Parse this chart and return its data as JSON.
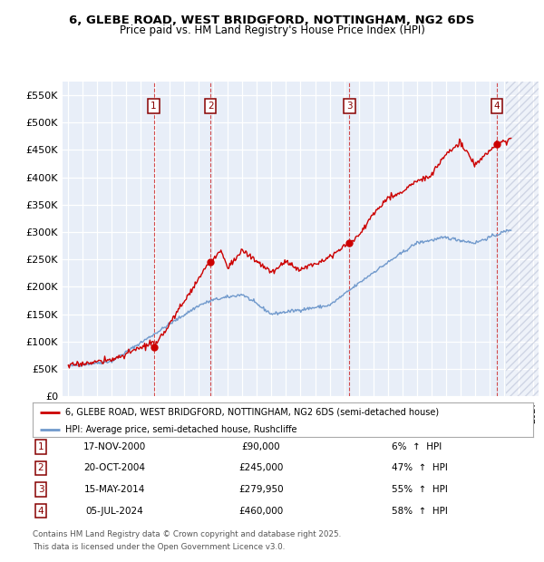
{
  "title": "6, GLEBE ROAD, WEST BRIDGFORD, NOTTINGHAM, NG2 6DS",
  "subtitle": "Price paid vs. HM Land Registry's House Price Index (HPI)",
  "ylabel_ticks": [
    0,
    50000,
    100000,
    150000,
    200000,
    250000,
    300000,
    350000,
    400000,
    450000,
    500000,
    550000
  ],
  "ylabel_labels": [
    "£0",
    "£50K",
    "£100K",
    "£150K",
    "£200K",
    "£250K",
    "£300K",
    "£350K",
    "£400K",
    "£450K",
    "£500K",
    "£550K"
  ],
  "xmin": 1994.6,
  "xmax": 2027.4,
  "ymin": 0,
  "ymax": 575000,
  "red_line_label": "6, GLEBE ROAD, WEST BRIDGFORD, NOTTINGHAM, NG2 6DS (semi-detached house)",
  "blue_line_label": "HPI: Average price, semi-detached house, Rushcliffe",
  "sales": [
    {
      "num": 1,
      "date": "17-NOV-2000",
      "year": 2000.88,
      "price": 90000,
      "hpi_pct": "6%",
      "direction": "↑"
    },
    {
      "num": 2,
      "date": "20-OCT-2004",
      "year": 2004.8,
      "price": 245000,
      "hpi_pct": "47%",
      "direction": "↑"
    },
    {
      "num": 3,
      "date": "15-MAY-2014",
      "year": 2014.37,
      "price": 279950,
      "hpi_pct": "55%",
      "direction": "↑"
    },
    {
      "num": 4,
      "date": "05-JUL-2024",
      "year": 2024.51,
      "price": 460000,
      "hpi_pct": "58%",
      "direction": "↑"
    }
  ],
  "footnote1": "Contains HM Land Registry data © Crown copyright and database right 2025.",
  "footnote2": "This data is licensed under the Open Government Licence v3.0.",
  "bg_color": "#e8eef8",
  "hatch_start": 2025.17,
  "hatch_color": "#d0d8ec",
  "red_color": "#cc0000",
  "blue_color": "#7099cc"
}
